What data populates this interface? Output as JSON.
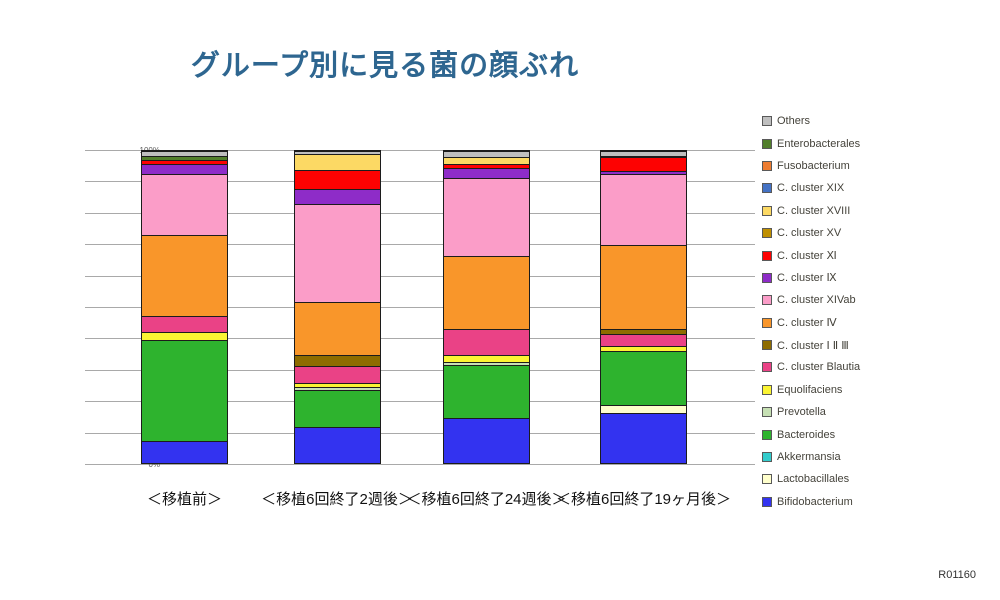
{
  "title": "グループ別に見る菌の顔ぶれ",
  "footer": {
    "code": "R01160"
  },
  "chart_data": {
    "type": "bar",
    "stacked": true,
    "percent": true,
    "title": "グループ別に見る菌の顔ぶれ",
    "xlabel": "",
    "ylabel": "",
    "ylim": [
      0,
      100
    ],
    "y_step": 10,
    "y_tick_suffix": "%",
    "grid": true,
    "legend_position": "right",
    "categories": [
      "＜移植前＞",
      "＜移植6回終了2週後＞",
      "＜移植6回終了24週後＞",
      "＜移植6回終了19ヶ月後＞"
    ],
    "series": [
      {
        "name": "Bifidobacterium",
        "color": "#3333f0",
        "values": [
          7,
          11.5,
          14.5,
          16
        ]
      },
      {
        "name": "Lactobacillales",
        "color": "#ffffcc",
        "values": [
          0,
          0,
          0,
          2.5
        ]
      },
      {
        "name": "Akkermansia",
        "color": "#33cccc",
        "values": [
          0,
          0,
          0,
          0
        ]
      },
      {
        "name": "Bacteroides",
        "color": "#2eb32e",
        "values": [
          32.5,
          12,
          17,
          17.5
        ]
      },
      {
        "name": "Prevotella",
        "color": "#c6e0b4",
        "values": [
          0,
          1,
          1,
          0
        ]
      },
      {
        "name": "Equolifaciens",
        "color": "#fbf433",
        "values": [
          2.5,
          1,
          2,
          1.5
        ]
      },
      {
        "name": "C. cluster Blautia",
        "color": "#ea4286",
        "values": [
          5,
          5.5,
          8.5,
          4
        ]
      },
      {
        "name": "C. cluster Ⅰ Ⅱ Ⅲ",
        "color": "#8e6c00",
        "values": [
          0,
          3.5,
          0,
          1.5
        ]
      },
      {
        "name": "C. cluster Ⅳ",
        "color": "#f9962a",
        "values": [
          26,
          17,
          23.5,
          27
        ]
      },
      {
        "name": "C. cluster XIVab",
        "color": "#fb9dc8",
        "values": [
          19.5,
          31.5,
          25,
          22.5
        ]
      },
      {
        "name": "C. cluster Ⅸ",
        "color": "#8e2cc8",
        "values": [
          3.5,
          5,
          3,
          1
        ]
      },
      {
        "name": "C. cluster Ⅺ",
        "color": "#fd0202",
        "values": [
          1,
          6,
          1.5,
          4.5
        ]
      },
      {
        "name": "C. cluster XV",
        "color": "#bf8f00",
        "values": [
          0,
          0,
          0,
          0.5
        ]
      },
      {
        "name": "C. cluster XVIII",
        "color": "#fcd964",
        "values": [
          0,
          5,
          2,
          0
        ]
      },
      {
        "name": "C. cluster XIX",
        "color": "#4472c4",
        "values": [
          0,
          0,
          0,
          0
        ]
      },
      {
        "name": "Fusobacterium",
        "color": "#ed7d31",
        "values": [
          0,
          0,
          0,
          0
        ]
      },
      {
        "name": "Enterobacterales",
        "color": "#527f2c",
        "values": [
          1.5,
          0,
          0,
          0
        ]
      },
      {
        "name": "Others",
        "color": "#bfbfbf",
        "values": [
          1.5,
          1,
          2,
          1.5
        ]
      }
    ]
  }
}
